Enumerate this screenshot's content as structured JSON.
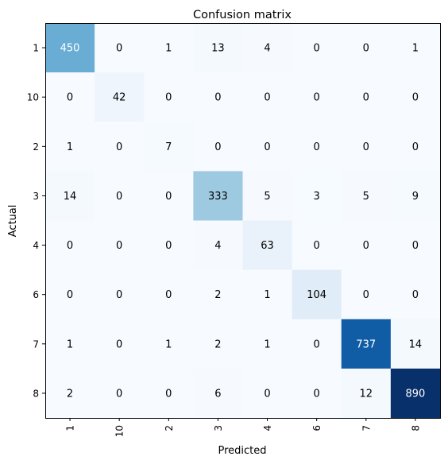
{
  "chart_data": {
    "type": "heatmap",
    "title": "Confusion matrix",
    "xlabel": "Predicted",
    "ylabel": "Actual",
    "x_categories": [
      "1",
      "10",
      "2",
      "3",
      "4",
      "6",
      "7",
      "8"
    ],
    "y_categories": [
      "1",
      "10",
      "2",
      "3",
      "4",
      "6",
      "7",
      "8"
    ],
    "colormap": "Blues",
    "color_range": [
      0,
      890
    ],
    "values": [
      [
        450,
        0,
        1,
        13,
        4,
        0,
        0,
        1
      ],
      [
        0,
        42,
        0,
        0,
        0,
        0,
        0,
        0
      ],
      [
        1,
        0,
        7,
        0,
        0,
        0,
        0,
        0
      ],
      [
        14,
        0,
        0,
        333,
        5,
        3,
        5,
        9
      ],
      [
        0,
        0,
        0,
        4,
        63,
        0,
        0,
        0
      ],
      [
        0,
        0,
        0,
        2,
        1,
        104,
        0,
        0
      ],
      [
        1,
        0,
        1,
        2,
        1,
        0,
        737,
        14
      ],
      [
        2,
        0,
        0,
        6,
        0,
        0,
        12,
        890
      ]
    ]
  }
}
